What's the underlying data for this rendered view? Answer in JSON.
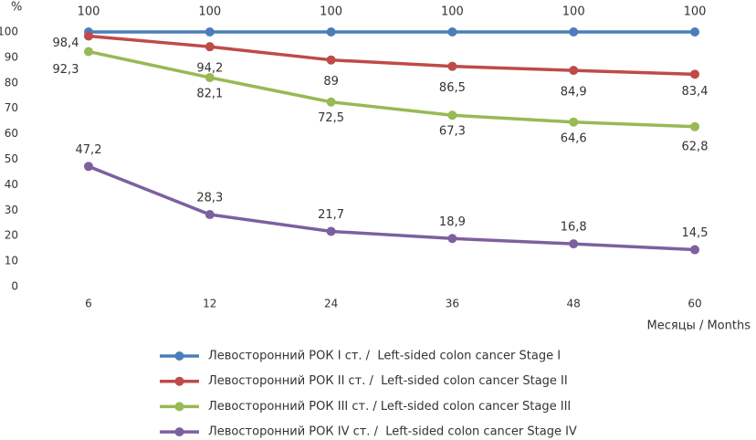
{
  "chart_data": {
    "type": "line",
    "y_label": "%",
    "x_label": "Месяцы / Months",
    "categories": [
      "6",
      "12",
      "24",
      "36",
      "48",
      "60"
    ],
    "ylim": [
      0,
      100
    ],
    "yticks": [
      0,
      10,
      20,
      30,
      40,
      50,
      60,
      70,
      80,
      90,
      100
    ],
    "grid": false,
    "legend": "bottom",
    "series": [
      {
        "name": "Левосторонний РОК I ст. /  Left-sided colon cancer Stage I",
        "color": "#4a7ebb",
        "values": [
          100,
          100,
          100,
          100,
          100,
          100
        ],
        "value_labels": [
          "100",
          "100",
          "100",
          "100",
          "100",
          "100"
        ]
      },
      {
        "name": "Левосторонний РОК II ст. /  Left-sided colon cancer Stage II",
        "color": "#be4b48",
        "values": [
          98.4,
          94.2,
          89,
          86.5,
          84.9,
          83.4
        ],
        "value_labels": [
          "98,4",
          "94,2",
          "89",
          "86,5",
          "84,9",
          "83,4"
        ]
      },
      {
        "name": "Левосторонний РОК III ст. / Left-sided colon cancer Stage III",
        "color": "#98b954",
        "values": [
          92.3,
          82.1,
          72.5,
          67.3,
          64.6,
          62.8
        ],
        "value_labels": [
          "92,3",
          "82,1",
          "72,5",
          "67,3",
          "64,6",
          "62,8"
        ]
      },
      {
        "name": "Левосторонний РОК IV ст. /  Left-sided colon cancer Stage IV",
        "color": "#7d60a0",
        "values": [
          47.2,
          28.3,
          21.7,
          18.9,
          16.8,
          14.5
        ],
        "value_labels": [
          "47,2",
          "28,3",
          "21,7",
          "18,9",
          "16,8",
          "14,5"
        ]
      }
    ]
  }
}
